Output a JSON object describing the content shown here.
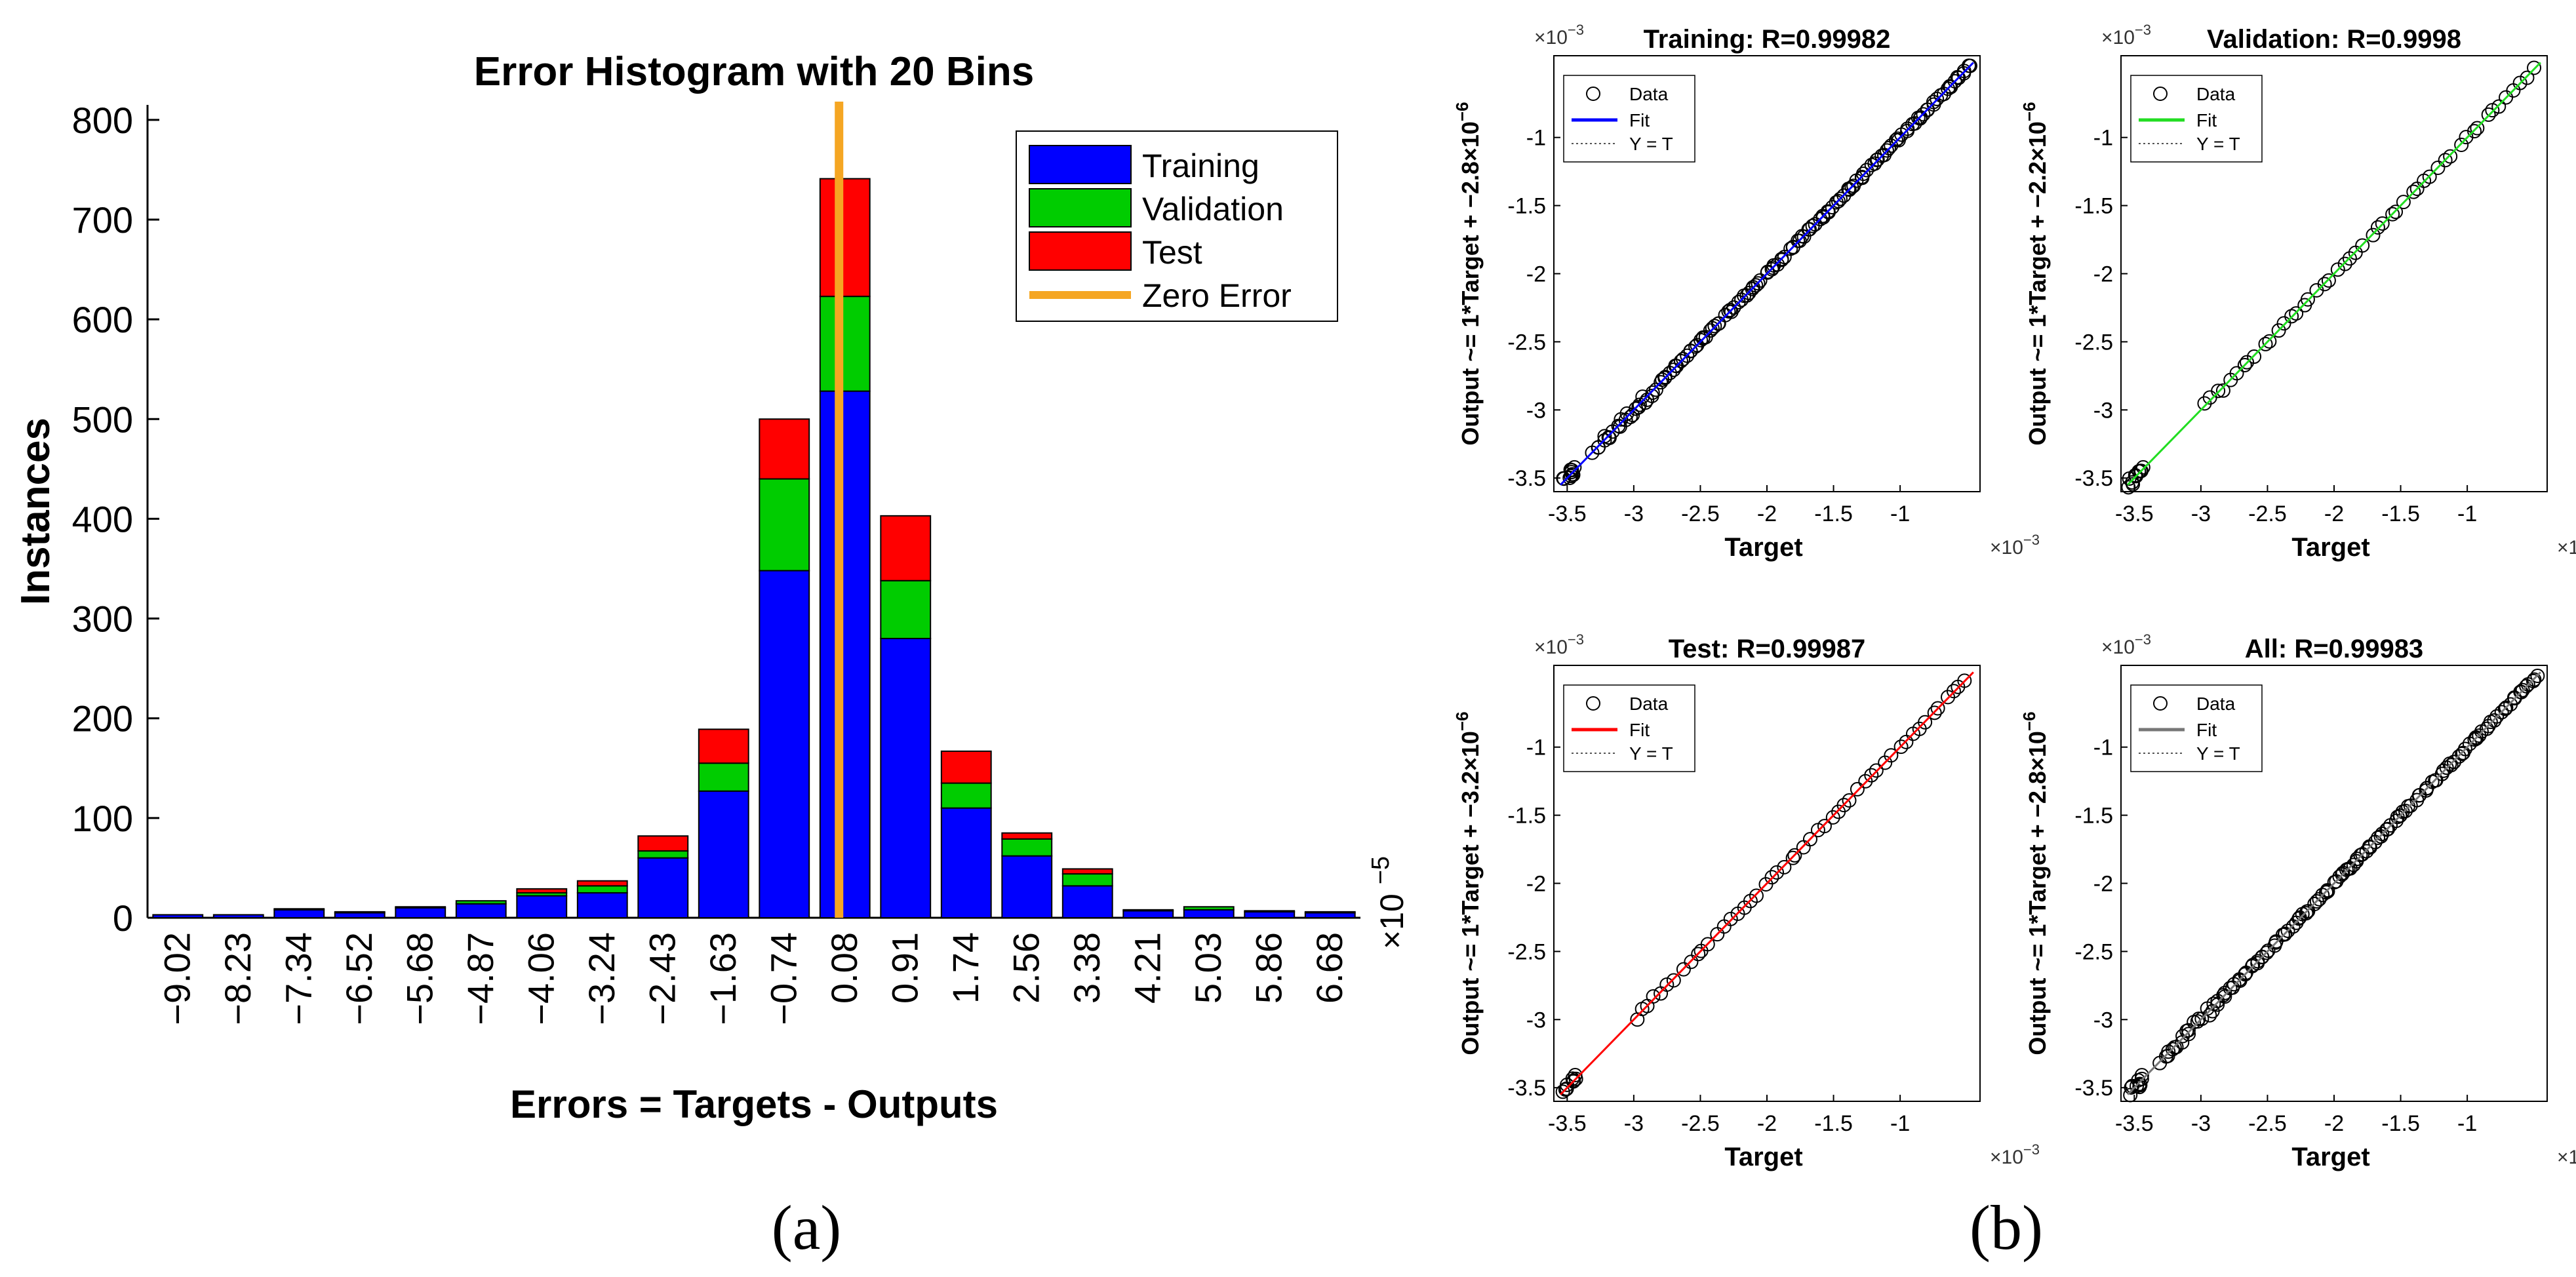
{
  "panel_labels": {
    "a": "(a)",
    "b": "(b)"
  },
  "colors": {
    "training": "#0000FF",
    "validation": "#00CC00",
    "test": "#FF0000",
    "zero_error": "#F5A623",
    "data_marker": "#000000",
    "fit_training": "#0000FF",
    "fit_validation": "#22DD22",
    "fit_test": "#FF0000",
    "fit_all": "#777777"
  },
  "chart_data": [
    {
      "type": "bar",
      "stacked": true,
      "title": "Error Histogram with 20 Bins",
      "xlabel": "Errors = Targets - Outputs",
      "ylabel": "Instances",
      "x_exponent_label": "×10",
      "x_exponent_power": "−5",
      "ylim": [
        0,
        815
      ],
      "yticks": [
        0,
        100,
        200,
        300,
        400,
        500,
        600,
        700,
        800
      ],
      "categories": [
        "−9.02",
        "−8.23",
        "−7.34",
        "−6.52",
        "−5.68",
        "−4.87",
        "−4.06",
        "−3.24",
        "−2.43",
        "−1.63",
        "−0.74",
        "0.08",
        "0.91",
        "1.74",
        "2.56",
        "3.38",
        "4.21",
        "5.03",
        "5.86",
        "6.68"
      ],
      "series": [
        {
          "name": "Training",
          "values": [
            3,
            3,
            8,
            5,
            10,
            14,
            22,
            25,
            60,
            127,
            348,
            528,
            280,
            110,
            62,
            32,
            7,
            8,
            6,
            5
          ]
        },
        {
          "name": "Validation",
          "values": [
            0,
            0,
            1,
            1,
            1,
            3,
            3,
            7,
            7,
            28,
            92,
            95,
            58,
            25,
            17,
            12,
            1,
            3,
            1,
            1
          ]
        },
        {
          "name": "Test",
          "values": [
            0,
            0,
            0,
            0,
            0,
            0,
            4,
            5,
            15,
            34,
            60,
            118,
            65,
            32,
            6,
            5,
            0,
            0,
            0,
            0
          ]
        }
      ],
      "zero_error_position": 0,
      "legend": [
        "Training",
        "Validation",
        "Test",
        "Zero Error"
      ],
      "legend_position": "top-right"
    },
    {
      "type": "scatter",
      "title": "Training: R=0.99982",
      "xlabel": "Target",
      "ylabel": "Output ~= 1*Target + −2.8×10",
      "ylabel_power": "−6",
      "axis_exponent": "×10",
      "axis_exponent_power": "−3",
      "xlim": [
        -3.6,
        -0.4
      ],
      "ylim": [
        -3.6,
        -0.4
      ],
      "xticks": [
        -3.5,
        -3,
        -2.5,
        -2,
        -1.5,
        -1
      ],
      "yticks": [
        -3.5,
        -3,
        -2.5,
        -2,
        -1.5,
        -1
      ],
      "xtick_labels": [
        "-3.5",
        "-3",
        "-2.5",
        "-2",
        "-1.5",
        "-1"
      ],
      "ytick_labels": [
        "-3.5",
        "-3",
        "-2.5",
        "-2",
        "-1.5",
        "-1"
      ],
      "fit_color_key": "fit_training",
      "marker_density": "dense",
      "legend": [
        "Data",
        "Fit",
        "Y = T"
      ],
      "legend_position": "top-left"
    },
    {
      "type": "scatter",
      "title": "Validation: R=0.9998",
      "xlabel": "Target",
      "ylabel": "Output ~= 1*Target + −2.2×10",
      "ylabel_power": "−6",
      "axis_exponent": "×10",
      "axis_exponent_power": "−3",
      "xlim": [
        -3.6,
        -0.4
      ],
      "ylim": [
        -3.6,
        -0.4
      ],
      "xticks": [
        -3.5,
        -3,
        -2.5,
        -2,
        -1.5,
        -1
      ],
      "yticks": [
        -3.5,
        -3,
        -2.5,
        -2,
        -1.5,
        -1
      ],
      "xtick_labels": [
        "-3.5",
        "-3",
        "-2.5",
        "-2",
        "-1.5",
        "-1"
      ],
      "ytick_labels": [
        "-3.5",
        "-3",
        "-2.5",
        "-2",
        "-1.5",
        "-1"
      ],
      "fit_color_key": "fit_validation",
      "marker_density": "sparse",
      "legend": [
        "Data",
        "Fit",
        "Y = T"
      ],
      "legend_position": "top-left"
    },
    {
      "type": "scatter",
      "title": "Test: R=0.99987",
      "xlabel": "Target",
      "ylabel": "Output ~= 1*Target + −3.2×10",
      "ylabel_power": "−6",
      "axis_exponent": "×10",
      "axis_exponent_power": "−3",
      "xlim": [
        -3.6,
        -0.4
      ],
      "ylim": [
        -3.6,
        -0.4
      ],
      "xticks": [
        -3.5,
        -3,
        -2.5,
        -2,
        -1.5,
        -1
      ],
      "yticks": [
        -3.5,
        -3,
        -2.5,
        -2,
        -1.5,
        -1
      ],
      "xtick_labels": [
        "-3.5",
        "-3",
        "-2.5",
        "-2",
        "-1.5",
        "-1"
      ],
      "ytick_labels": [
        "-3.5",
        "-3",
        "-2.5",
        "-2",
        "-1.5",
        "-1"
      ],
      "fit_color_key": "fit_test",
      "marker_density": "sparse",
      "legend": [
        "Data",
        "Fit",
        "Y = T"
      ],
      "legend_position": "top-left"
    },
    {
      "type": "scatter",
      "title": "All: R=0.99983",
      "xlabel": "Target",
      "ylabel": "Output ~= 1*Target + −2.8×10",
      "ylabel_power": "−6",
      "axis_exponent": "×10",
      "axis_exponent_power": "−3",
      "xlim": [
        -3.6,
        -0.4
      ],
      "ylim": [
        -3.6,
        -0.4
      ],
      "xticks": [
        -3.5,
        -3,
        -2.5,
        -2,
        -1.5,
        -1
      ],
      "yticks": [
        -3.5,
        -3,
        -2.5,
        -2,
        -1.5,
        -1
      ],
      "xtick_labels": [
        "-3.5",
        "-3",
        "-2.5",
        "-2",
        "-1.5",
        "-1"
      ],
      "ytick_labels": [
        "-3.5",
        "-3",
        "-2.5",
        "-2",
        "-1.5",
        "-1"
      ],
      "fit_color_key": "fit_all",
      "marker_density": "dense",
      "legend": [
        "Data",
        "Fit",
        "Y = T"
      ],
      "legend_position": "top-left"
    }
  ]
}
